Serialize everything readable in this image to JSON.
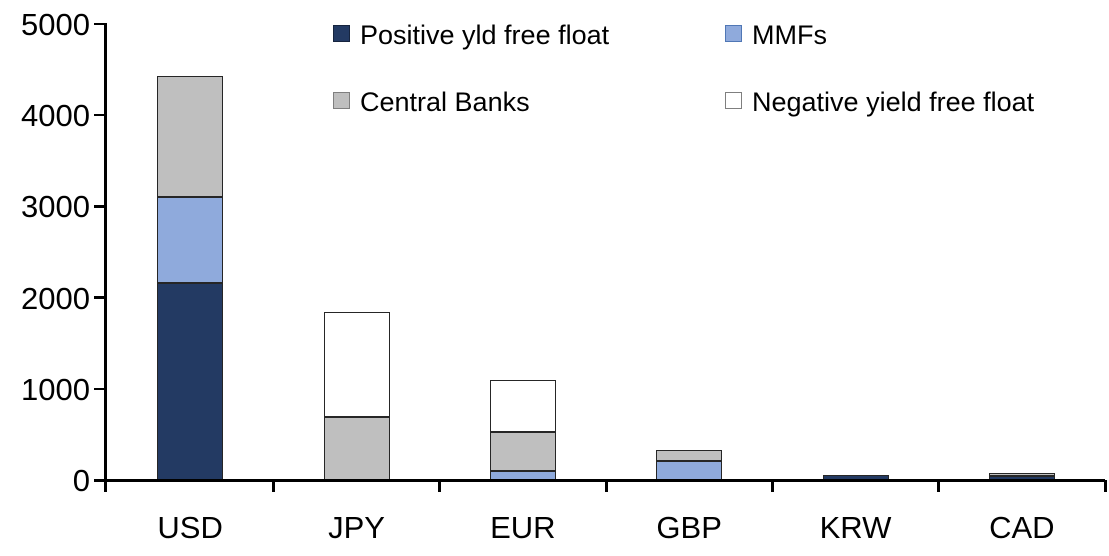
{
  "chart_data": {
    "type": "bar",
    "subtype": "stacked-column",
    "title": "",
    "xlabel": "",
    "ylabel": "",
    "categories": [
      "USD",
      "JPY",
      "EUR",
      "GBP",
      "KRW",
      "CAD"
    ],
    "series": [
      {
        "name": "Positive yld free float",
        "color": "#233A63",
        "swatch_border": "#16243E",
        "values": [
          2160,
          0,
          0,
          0,
          50,
          45
        ]
      },
      {
        "name": "MMFs",
        "color": "#8FAADC",
        "swatch_border": "#5077B5",
        "values": [
          940,
          0,
          100,
          205,
          0,
          0
        ]
      },
      {
        "name": "Central Banks",
        "color": "#BFBFBF",
        "swatch_border": "#7F7F7F",
        "values": [
          1330,
          690,
          430,
          120,
          0,
          30
        ]
      },
      {
        "name": "Negative yield free float",
        "color": "#FFFFFF",
        "swatch_border": "#7F7F7F",
        "values": [
          0,
          1155,
          570,
          0,
          0,
          0
        ]
      }
    ],
    "totals": [
      4430,
      1845,
      1100,
      325,
      50,
      75
    ],
    "ylim": [
      0,
      5000
    ],
    "ytick_interval": 1000,
    "yticks": [
      "0",
      "1000",
      "2000",
      "3000",
      "4000",
      "5000"
    ],
    "grid": false,
    "legend_position": "top-inside-two-columns",
    "legend_order": [
      "Positive yld free float",
      "MMFs",
      "Central Banks",
      "Negative yield free float"
    ],
    "bar_outline_color": "#262626",
    "axis_color": "#000000",
    "background_color": "#FFFFFF"
  }
}
